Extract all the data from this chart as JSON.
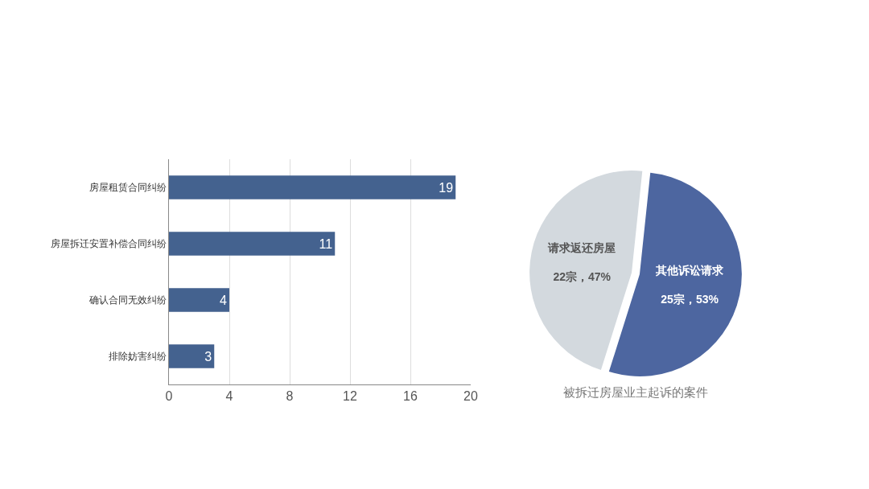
{
  "chart_data": [
    {
      "type": "bar",
      "orientation": "horizontal",
      "categories": [
        "房屋租赁合同纠纷",
        "房屋拆迁安置补偿合同纠纷",
        "确认合同无效纠纷",
        "排除妨害纠纷"
      ],
      "values": [
        19,
        11,
        4,
        3
      ],
      "color": "#44628f",
      "xlim": [
        0,
        20
      ],
      "xticks": [
        0,
        4,
        8,
        12,
        16,
        20
      ],
      "grid": "x",
      "data_labels": true
    },
    {
      "type": "pie",
      "categories": [
        "其他诉讼请求",
        "请求返还房屋"
      ],
      "values": [
        25,
        22
      ],
      "colors": [
        "#4d66a0",
        "#d3d9de"
      ],
      "value_labels": [
        "25宗，53%",
        "22宗，47%"
      ],
      "annotations": [
        "被拆迁房屋业主起诉的案件"
      ]
    }
  ]
}
